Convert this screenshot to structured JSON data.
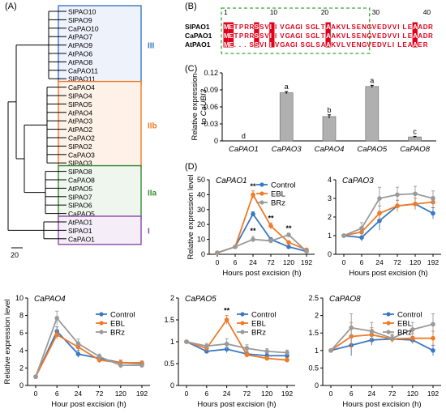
{
  "panels": {
    "A": "(A)",
    "B": "(B)",
    "C": "(C)",
    "D": "(D)"
  },
  "colors": {
    "blue": "#3a78c2",
    "orange": "#ef7a27",
    "green": "#3a8a3a",
    "purple": "#8a4aa8",
    "gray": "#9a9a9a",
    "bar": "#b0b0b0",
    "align_red": "#e0001a"
  },
  "tree": {
    "scale_label": "20",
    "groups": [
      {
        "name": "III",
        "color": "#3a78c2",
        "fill": "#eef3fb",
        "leaves": [
          "SlPAO10",
          "SlPAO9",
          "CaPAO10",
          "AtPAO7",
          "AtPAO9",
          "AtPAO6",
          "AtPAO8",
          "CaPAO11",
          "SlPAO11"
        ]
      },
      {
        "name": "IIb",
        "color": "#ef7a27",
        "fill": "#fdf1e8",
        "leaves": [
          "CaPAO4",
          "SlPAO4",
          "SlPAO5",
          "AtPAO4",
          "AtPAO3",
          "AtPAO2",
          "CaPAO2",
          "SlPAO2",
          "CaPAO3",
          "SlPAO3"
        ]
      },
      {
        "name": "IIa",
        "color": "#3a8a3a",
        "fill": "#eef6ee",
        "leaves": [
          "SlPAO8",
          "CaPAO8",
          "AtPAO5",
          "SlPAO7",
          "SlPAO6",
          "CaPAO5"
        ]
      },
      {
        "name": "I",
        "color": "#8a4aa8",
        "fill": "#f5eef8",
        "leaves": [
          "AtPAO1",
          "SlPAO1",
          "CaPAO1"
        ]
      }
    ]
  },
  "alignment": {
    "positions": [
      "1",
      "10",
      "20",
      "30",
      "40"
    ],
    "names": [
      "SlPAO1",
      "CaPAO1",
      "AtPAO1"
    ],
    "seqs": [
      "METPRRSSVIIVGAGISGLTAAKVLSENGVEDVVILEAADR",
      "METPRRSSVIIVGAGISGLTAAKVLSENGVEDVVILEAADR",
      "ME...SSVIIVGAGISGLSAAKVLVENGVEDVLILEAAER"
    ]
  },
  "chart_data": [
    {
      "panel": "C",
      "type": "bar",
      "categories": [
        "CaPAO1",
        "CaPAO3",
        "CaPAO4",
        "CaPAO5",
        "CaPAO8"
      ],
      "values": [
        0,
        0.085,
        0.043,
        0.096,
        0.007
      ],
      "errors": [
        0,
        0.002,
        0.003,
        0.002,
        0.001
      ],
      "letters": [
        "d",
        "a",
        "b",
        "a",
        "c"
      ],
      "ylabel": "Relative expression to CaUBI3",
      "ylim": [
        0,
        0.12
      ],
      "yticks": [
        "0",
        "0.03",
        "0.06",
        "0.09",
        "0.12"
      ]
    },
    {
      "panel": "D",
      "type": "line",
      "title": "CaPAO1",
      "x": [
        "0",
        "6",
        "24",
        "72",
        "120",
        "192"
      ],
      "xlabel": "Hours post excision (h)",
      "ylabel": "Relative expression level",
      "ylim": [
        0,
        50
      ],
      "yticks": [
        "0",
        "10",
        "20",
        "30",
        "40",
        "50"
      ],
      "legend": [
        "Control",
        "EBL",
        "BRz"
      ],
      "series": [
        {
          "name": "Control",
          "values": [
            1,
            5,
            27,
            10,
            5,
            2
          ],
          "errors": [
            0.2,
            0.5,
            1.5,
            1.0,
            0.6,
            0.3
          ]
        },
        {
          "name": "EBL",
          "values": [
            1,
            5,
            40,
            19,
            8,
            3
          ],
          "errors": [
            0.2,
            0.5,
            2.5,
            2.0,
            1.0,
            0.4
          ]
        },
        {
          "name": "BRz",
          "values": [
            1,
            5,
            10,
            9,
            13,
            2
          ],
          "errors": [
            0.2,
            0.5,
            2.0,
            1.5,
            1.2,
            0.3
          ]
        }
      ],
      "marks": [
        {
          "x": "24",
          "text": "**"
        },
        {
          "x": "24",
          "text": "**",
          "level": 14
        },
        {
          "x": "72",
          "text": "**"
        },
        {
          "x": "120",
          "text": "**"
        }
      ]
    },
    {
      "panel": "D",
      "type": "line",
      "title": "CaPAO3",
      "x": [
        "0",
        "6",
        "24",
        "72",
        "120",
        "192"
      ],
      "xlabel": "Hours post excision (h)",
      "ylabel": "",
      "ylim": [
        0,
        4
      ],
      "yticks": [
        "0",
        "1",
        "2",
        "3",
        "4"
      ],
      "series": [
        {
          "name": "Control",
          "values": [
            1,
            0.9,
            1.8,
            2.6,
            2.7,
            2.2
          ],
          "errors": [
            0.05,
            0.2,
            0.5,
            0.3,
            0.3,
            0.3
          ]
        },
        {
          "name": "EBL",
          "values": [
            1,
            1.2,
            2.2,
            2.6,
            2.7,
            2.8
          ],
          "errors": [
            0.05,
            0.2,
            0.4,
            0.3,
            0.3,
            0.3
          ]
        },
        {
          "name": "BRz",
          "values": [
            1,
            1.4,
            3.0,
            3.2,
            3.25,
            3.0
          ],
          "errors": [
            0.05,
            0.3,
            0.6,
            0.4,
            0.4,
            0.4
          ]
        }
      ]
    },
    {
      "panel": "D",
      "type": "line",
      "title": "CaPAO4",
      "x": [
        "0",
        "6",
        "24",
        "72",
        "120",
        "192"
      ],
      "xlabel": "Hour post excision (h)",
      "ylabel": "Relative expression level",
      "ylim": [
        0,
        10
      ],
      "yticks": [
        "0",
        "2",
        "4",
        "6",
        "8",
        "10"
      ],
      "legend": [
        "Control",
        "EBL",
        "BRz"
      ],
      "series": [
        {
          "name": "Control",
          "values": [
            1,
            6.2,
            3.6,
            3.1,
            2.6,
            2.5
          ],
          "errors": [
            0.1,
            0.5,
            0.4,
            0.3,
            0.3,
            0.2
          ]
        },
        {
          "name": "EBL",
          "values": [
            1,
            5.8,
            4.4,
            2.9,
            2.6,
            2.6
          ],
          "errors": [
            0.1,
            0.5,
            0.4,
            0.3,
            0.3,
            0.2
          ]
        },
        {
          "name": "BRz",
          "values": [
            1,
            7.7,
            4.8,
            3.3,
            2.3,
            2.3
          ],
          "errors": [
            0.1,
            0.8,
            0.5,
            0.3,
            0.3,
            0.2
          ]
        }
      ]
    },
    {
      "panel": "D",
      "type": "line",
      "title": "CaPAO5",
      "x": [
        "0",
        "6",
        "24",
        "72",
        "120",
        "192"
      ],
      "xlabel": "Hours post excision (h)",
      "ylabel": "",
      "ylim": [
        0,
        2
      ],
      "yticks": [
        "0",
        "0.5",
        "1",
        "1.5",
        "2"
      ],
      "legend": [
        "Control",
        "EBL",
        "BRz"
      ],
      "series": [
        {
          "name": "Control",
          "values": [
            1,
            0.78,
            0.83,
            0.72,
            0.68,
            0.68
          ],
          "errors": [
            0.02,
            0.05,
            0.08,
            0.06,
            0.05,
            0.05
          ]
        },
        {
          "name": "EBL",
          "values": [
            1,
            0.85,
            1.5,
            0.7,
            0.62,
            0.58
          ],
          "errors": [
            0.02,
            0.06,
            0.1,
            0.06,
            0.05,
            0.05
          ]
        },
        {
          "name": "BRz",
          "values": [
            1,
            0.9,
            0.95,
            0.85,
            0.78,
            0.75
          ],
          "errors": [
            0.02,
            0.06,
            0.12,
            0.08,
            0.06,
            0.06
          ]
        }
      ],
      "marks": [
        {
          "x": "24",
          "text": "**"
        }
      ]
    },
    {
      "panel": "D",
      "type": "line",
      "title": "CaPAO8",
      "x": [
        "0",
        "6",
        "24",
        "72",
        "120",
        "192"
      ],
      "xlabel": "Hours post excision (h)",
      "ylabel": "",
      "ylim": [
        0,
        2.5
      ],
      "yticks": [
        "0",
        "0.5",
        "1",
        "1.5",
        "2",
        "2.5"
      ],
      "legend": [
        "Control",
        "EBL",
        "BRz"
      ],
      "series": [
        {
          "name": "Control",
          "values": [
            1,
            1.15,
            1.3,
            1.33,
            1.3,
            1.0
          ],
          "errors": [
            0.02,
            0.3,
            0.15,
            0.1,
            0.1,
            0.15
          ]
        },
        {
          "name": "EBL",
          "values": [
            1,
            1.4,
            1.45,
            1.33,
            1.35,
            1.35
          ],
          "errors": [
            0.02,
            0.4,
            0.2,
            0.1,
            0.15,
            0.2
          ]
        },
        {
          "name": "BRz",
          "values": [
            1,
            1.65,
            1.55,
            1.35,
            1.6,
            1.75
          ],
          "errors": [
            0.02,
            0.4,
            0.25,
            0.12,
            0.2,
            0.3
          ]
        }
      ]
    }
  ]
}
